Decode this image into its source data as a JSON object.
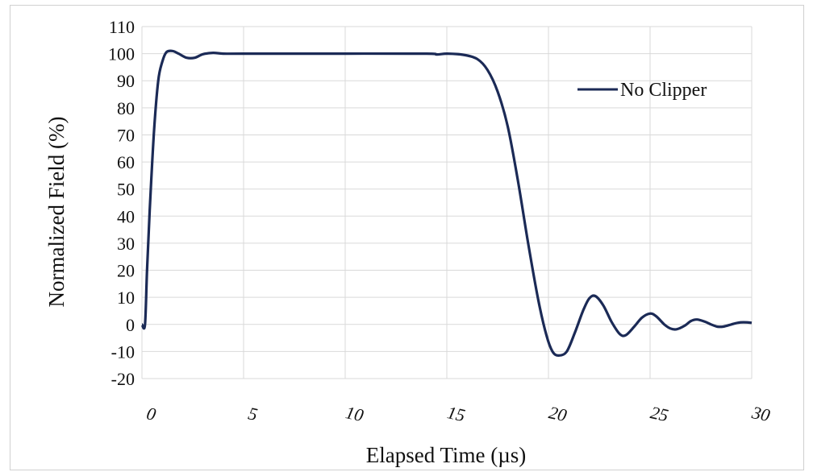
{
  "chart_data": {
    "type": "line",
    "title": "",
    "xlabel": "Elapsed Time (µs)",
    "ylabel": "Normalized Field (%)",
    "xlim": [
      0,
      30
    ],
    "ylim": [
      -20,
      110
    ],
    "x_ticks": [
      "0",
      "5",
      "10",
      "15",
      "20",
      "25",
      "30"
    ],
    "y_ticks": [
      "110",
      "100",
      "90",
      "80",
      "70",
      "60",
      "50",
      "40",
      "30",
      "20",
      "10",
      "0",
      "-10",
      "-20"
    ],
    "grid": true,
    "legend_position": "top-right",
    "series": [
      {
        "name": "No Clipper",
        "color": "#1b2a56",
        "points": [
          [
            0,
            0
          ],
          [
            0.15,
            0
          ],
          [
            0.25,
            20
          ],
          [
            0.4,
            45
          ],
          [
            0.6,
            72
          ],
          [
            0.8,
            90
          ],
          [
            1.0,
            97
          ],
          [
            1.2,
            100.5
          ],
          [
            1.5,
            101
          ],
          [
            1.8,
            100
          ],
          [
            2.2,
            98.5
          ],
          [
            2.6,
            98.5
          ],
          [
            3.0,
            99.8
          ],
          [
            3.5,
            100.3
          ],
          [
            4.0,
            100
          ],
          [
            5.0,
            100
          ],
          [
            10.0,
            100
          ],
          [
            14.0,
            100
          ],
          [
            14.5,
            99.7
          ],
          [
            15.0,
            100
          ],
          [
            15.8,
            99.6
          ],
          [
            16.5,
            98
          ],
          [
            17.0,
            94
          ],
          [
            17.5,
            86
          ],
          [
            18.0,
            73
          ],
          [
            18.5,
            53
          ],
          [
            19.0,
            30
          ],
          [
            19.5,
            9
          ],
          [
            19.9,
            -4
          ],
          [
            20.2,
            -10
          ],
          [
            20.5,
            -11.5
          ],
          [
            20.9,
            -10
          ],
          [
            21.3,
            -3
          ],
          [
            21.7,
            5
          ],
          [
            22.0,
            9.5
          ],
          [
            22.3,
            10.5
          ],
          [
            22.7,
            7
          ],
          [
            23.1,
            1
          ],
          [
            23.5,
            -3.5
          ],
          [
            23.8,
            -4
          ],
          [
            24.2,
            -1
          ],
          [
            24.6,
            2.5
          ],
          [
            25.0,
            4
          ],
          [
            25.3,
            3
          ],
          [
            25.7,
            0
          ],
          [
            26.0,
            -1.5
          ],
          [
            26.3,
            -1.8
          ],
          [
            26.7,
            -0.5
          ],
          [
            27.0,
            1.2
          ],
          [
            27.3,
            1.8
          ],
          [
            27.7,
            1
          ],
          [
            28.0,
            0
          ],
          [
            28.3,
            -0.8
          ],
          [
            28.6,
            -0.8
          ],
          [
            29.0,
            0
          ],
          [
            29.3,
            0.6
          ],
          [
            29.6,
            0.8
          ],
          [
            30.0,
            0.6
          ]
        ]
      }
    ]
  }
}
